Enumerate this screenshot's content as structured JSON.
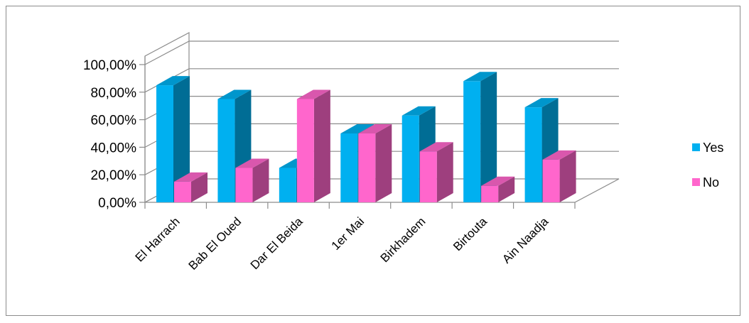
{
  "chart_data": {
    "type": "bar",
    "style": "3d-clustered-column",
    "title": "",
    "xlabel": "",
    "ylabel": "",
    "categories": [
      "El Harrach",
      "Bab El Oued",
      "Dar El Beida",
      "1er Mai",
      "Birkhadem",
      "Birtouta",
      "Ain Naadja"
    ],
    "series": [
      {
        "name": "Yes",
        "values": [
          85,
          75,
          25,
          50,
          63,
          88,
          69
        ],
        "color": "#00b0f0"
      },
      {
        "name": "No",
        "values": [
          15,
          25,
          75,
          50,
          37,
          12,
          31
        ],
        "color": "#ff66cc"
      }
    ],
    "y_ticks": [
      "0,00%",
      "20,00%",
      "40,00%",
      "60,00%",
      "80,00%",
      "100,00%"
    ],
    "ylim": [
      0,
      100
    ],
    "grid": true,
    "legend_position": "right"
  }
}
